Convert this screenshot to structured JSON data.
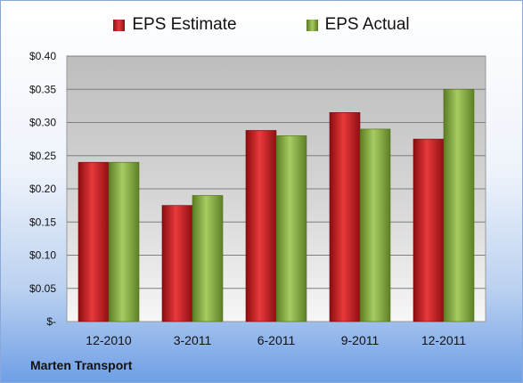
{
  "chart_data": {
    "type": "bar",
    "categories": [
      "12-2010",
      "3-2011",
      "6-2011",
      "9-2011",
      "12-2011"
    ],
    "series": [
      {
        "name": "EPS Estimate",
        "values": [
          0.24,
          0.175,
          0.288,
          0.315,
          0.275
        ]
      },
      {
        "name": "EPS Actual",
        "values": [
          0.24,
          0.19,
          0.28,
          0.29,
          0.35
        ]
      }
    ],
    "y_ticks": [
      "$-",
      "$0.05",
      "$0.10",
      "$0.15",
      "$0.20",
      "$0.25",
      "$0.30",
      "$0.35",
      "$0.40"
    ],
    "ylim": [
      0,
      0.4
    ],
    "grid": true,
    "legend_position": "top-center",
    "colors": {
      "estimate": "#c8191c",
      "actual": "#8db64a"
    }
  },
  "footer": {
    "company": "Marten Transport"
  }
}
